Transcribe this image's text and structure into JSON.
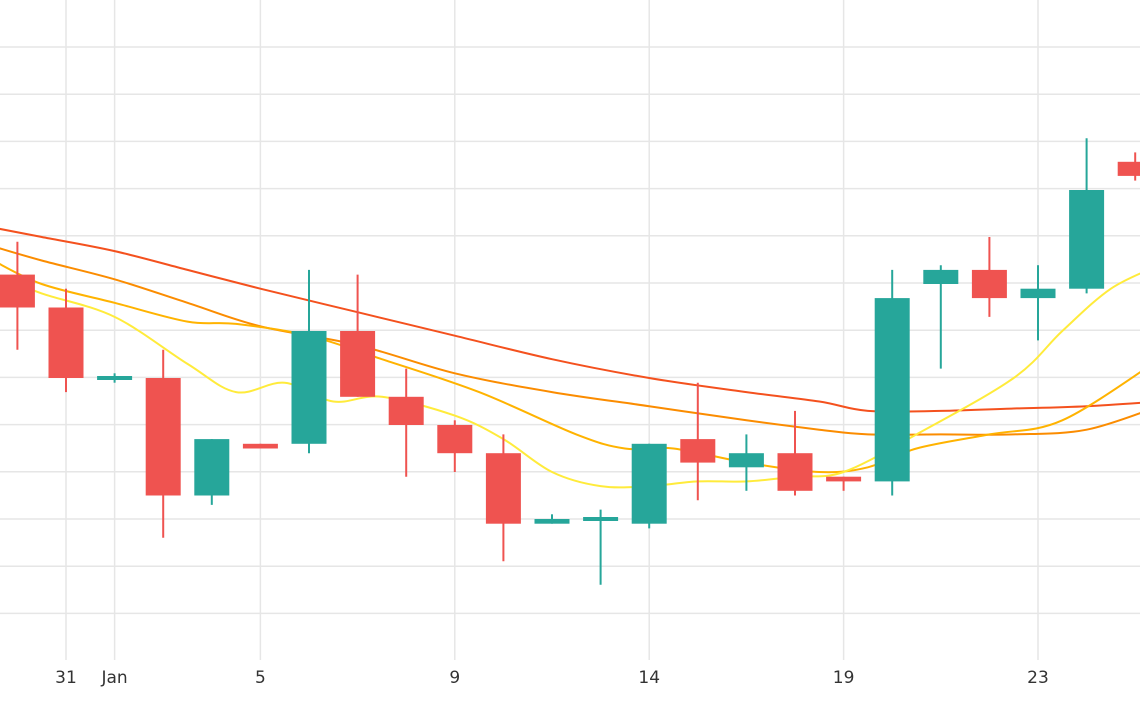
{
  "colors": {
    "background": "#ffffff",
    "grid": "#e6e6e6",
    "axis_text": "#333333",
    "up": "#26a69a",
    "down": "#ef5350"
  },
  "chart_data": {
    "type": "candlestick",
    "x_tick_labels": [
      {
        "pos": 0,
        "label": "31"
      },
      {
        "pos": 1,
        "label": "Jan"
      },
      {
        "pos": 4,
        "label": "5"
      },
      {
        "pos": 8,
        "label": "9"
      },
      {
        "pos": 12,
        "label": "14"
      },
      {
        "pos": 16,
        "label": "19"
      },
      {
        "pos": 20,
        "label": "23"
      }
    ],
    "y_range": [
      0,
      100
    ],
    "grid": true,
    "candles": [
      {
        "x": -1.0,
        "open": 82,
        "close": 75,
        "high": 89,
        "low": 66
      },
      {
        "x": 0.0,
        "open": 75,
        "close": 60,
        "high": 79,
        "low": 57
      },
      {
        "x": 1.0,
        "open": 60,
        "close": 60,
        "high": 61,
        "low": 59
      },
      {
        "x": 2.0,
        "open": 60,
        "close": 35,
        "high": 66,
        "low": 26
      },
      {
        "x": 3.0,
        "open": 35,
        "close": 47,
        "high": 47,
        "low": 33
      },
      {
        "x": 4.0,
        "open": 46,
        "close": 45,
        "high": 46,
        "low": 45
      },
      {
        "x": 5.0,
        "open": 46,
        "close": 70,
        "high": 83,
        "low": 44
      },
      {
        "x": 6.0,
        "open": 70,
        "close": 56,
        "high": 82,
        "low": 56
      },
      {
        "x": 7.0,
        "open": 56,
        "close": 50,
        "high": 62,
        "low": 39
      },
      {
        "x": 8.0,
        "open": 50,
        "close": 44,
        "high": 51,
        "low": 40
      },
      {
        "x": 9.0,
        "open": 44,
        "close": 29,
        "high": 48,
        "low": 21
      },
      {
        "x": 10.0,
        "open": 29,
        "close": 30,
        "high": 31,
        "low": 29
      },
      {
        "x": 11.0,
        "open": 30,
        "close": 30,
        "high": 32,
        "low": 16
      },
      {
        "x": 12.0,
        "open": 29,
        "close": 46,
        "high": 46,
        "low": 28
      },
      {
        "x": 13.0,
        "open": 47,
        "close": 42,
        "high": 59,
        "low": 34
      },
      {
        "x": 14.0,
        "open": 41,
        "close": 44,
        "high": 48,
        "low": 36
      },
      {
        "x": 15.0,
        "open": 44,
        "close": 36,
        "high": 53,
        "low": 35
      },
      {
        "x": 16.0,
        "open": 39,
        "close": 38,
        "high": 39,
        "low": 36
      },
      {
        "x": 17.0,
        "open": 38,
        "close": 77,
        "high": 83,
        "low": 35
      },
      {
        "x": 18.0,
        "open": 80,
        "close": 83,
        "high": 84,
        "low": 62
      },
      {
        "x": 19.0,
        "open": 83,
        "close": 77,
        "high": 90,
        "low": 73
      },
      {
        "x": 20.0,
        "open": 77,
        "close": 79,
        "high": 84,
        "low": 68
      },
      {
        "x": 21.0,
        "open": 79,
        "close": 100,
        "high": 111,
        "low": 78
      },
      {
        "x": 22.0,
        "open": 106,
        "close": 103,
        "high": 108,
        "low": 102
      }
    ],
    "moving_averages": [
      {
        "color": "#f4511e",
        "points": [
          [
            -1.5,
            92
          ],
          [
            -0.5,
            90
          ],
          [
            1.0,
            87
          ],
          [
            2.5,
            83
          ],
          [
            4.0,
            79
          ],
          [
            6.0,
            74
          ],
          [
            8.0,
            69
          ],
          [
            10.0,
            64
          ],
          [
            12.0,
            60
          ],
          [
            14.0,
            57
          ],
          [
            15.5,
            55
          ],
          [
            16.5,
            53
          ],
          [
            18.0,
            53
          ],
          [
            19.5,
            53.5
          ],
          [
            21.0,
            54
          ],
          [
            22.5,
            55
          ]
        ]
      },
      {
        "color": "#fb8c00",
        "points": [
          [
            -1.5,
            88
          ],
          [
            -0.5,
            85
          ],
          [
            1.0,
            81
          ],
          [
            2.5,
            76
          ],
          [
            4.0,
            71
          ],
          [
            6.0,
            67
          ],
          [
            8.0,
            61
          ],
          [
            10.0,
            57
          ],
          [
            12.0,
            54
          ],
          [
            14.0,
            51
          ],
          [
            15.5,
            49
          ],
          [
            16.5,
            48
          ],
          [
            18.0,
            48
          ],
          [
            19.5,
            48
          ],
          [
            21.0,
            49
          ],
          [
            22.5,
            54
          ]
        ]
      },
      {
        "color": "#ffb300",
        "points": [
          [
            -1.5,
            85
          ],
          [
            -0.5,
            80
          ],
          [
            1.0,
            76
          ],
          [
            2.5,
            72
          ],
          [
            3.5,
            71.5
          ],
          [
            5.0,
            69
          ],
          [
            6.5,
            64
          ],
          [
            8.5,
            57
          ],
          [
            10.5,
            48
          ],
          [
            11.5,
            45
          ],
          [
            12.5,
            45
          ],
          [
            14.0,
            42
          ],
          [
            15.5,
            40
          ],
          [
            16.5,
            41
          ],
          [
            17.5,
            45
          ],
          [
            19.0,
            48
          ],
          [
            20.5,
            51
          ],
          [
            22.5,
            64
          ]
        ]
      },
      {
        "color": "#ffeb3b",
        "points": [
          [
            -1.5,
            82
          ],
          [
            -0.5,
            78
          ],
          [
            1.0,
            73
          ],
          [
            2.5,
            63
          ],
          [
            3.5,
            57
          ],
          [
            4.5,
            59
          ],
          [
            5.5,
            55
          ],
          [
            6.5,
            56
          ],
          [
            8.0,
            52
          ],
          [
            9.0,
            47
          ],
          [
            10.0,
            40
          ],
          [
            11.0,
            37
          ],
          [
            12.0,
            37
          ],
          [
            13.0,
            38
          ],
          [
            14.0,
            38
          ],
          [
            15.0,
            39
          ],
          [
            16.0,
            40
          ],
          [
            17.5,
            48
          ],
          [
            19.5,
            60
          ],
          [
            20.5,
            70
          ],
          [
            21.5,
            79
          ],
          [
            22.5,
            84
          ]
        ]
      }
    ]
  }
}
